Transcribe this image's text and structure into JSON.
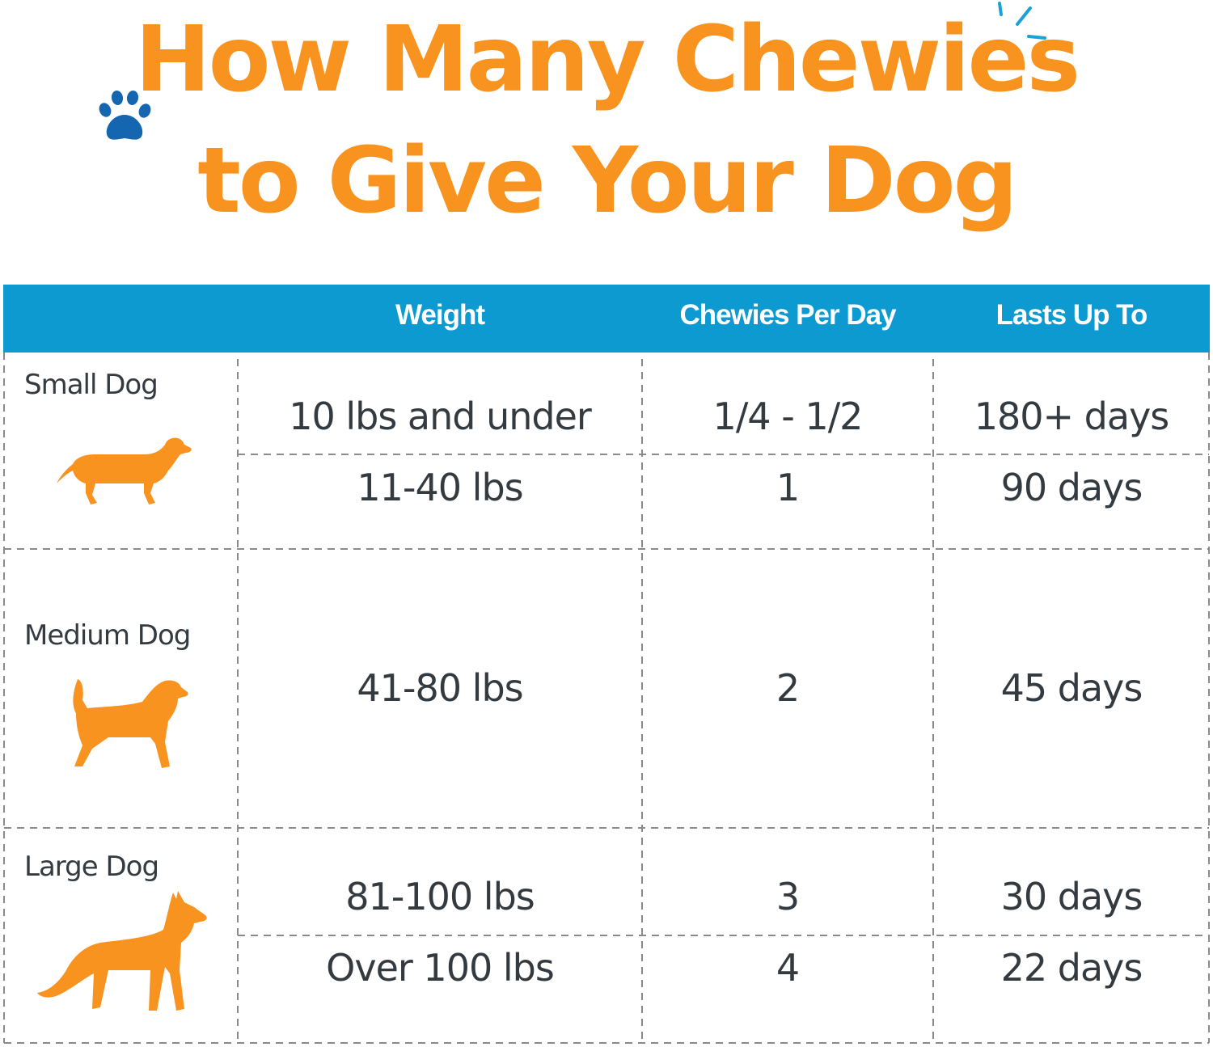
{
  "title": {
    "line1": "How Many Chewies",
    "line2": "to Give Your Dog"
  },
  "colors": {
    "title": "#f7931e",
    "header_bg": "#0d9ad1",
    "dog_silhouette": "#f7931e",
    "text": "#333a40",
    "paw": "#1566b0"
  },
  "icons": [
    "paw-icon",
    "sparkle-icon",
    "dachshund-icon",
    "beagle-icon",
    "husky-icon"
  ],
  "table": {
    "headers": {
      "weight": "Weight",
      "chewies": "Chewies Per Day",
      "lasts": "Lasts Up To"
    },
    "groups": [
      {
        "label": "Small Dog",
        "rows": [
          {
            "weight": "10 lbs and under",
            "chewies": "1/4  - 1/2",
            "lasts": "180+ days"
          },
          {
            "weight": "11-40 lbs",
            "chewies": "1",
            "lasts": "90 days"
          }
        ]
      },
      {
        "label": "Medium Dog",
        "rows": [
          {
            "weight": "41-80 lbs",
            "chewies": "2",
            "lasts": "45 days"
          }
        ]
      },
      {
        "label": "Large Dog",
        "rows": [
          {
            "weight": "81-100 lbs",
            "chewies": "3",
            "lasts": "30 days"
          },
          {
            "weight": "Over 100 lbs",
            "chewies": "4",
            "lasts": "22 days"
          }
        ]
      }
    ]
  }
}
